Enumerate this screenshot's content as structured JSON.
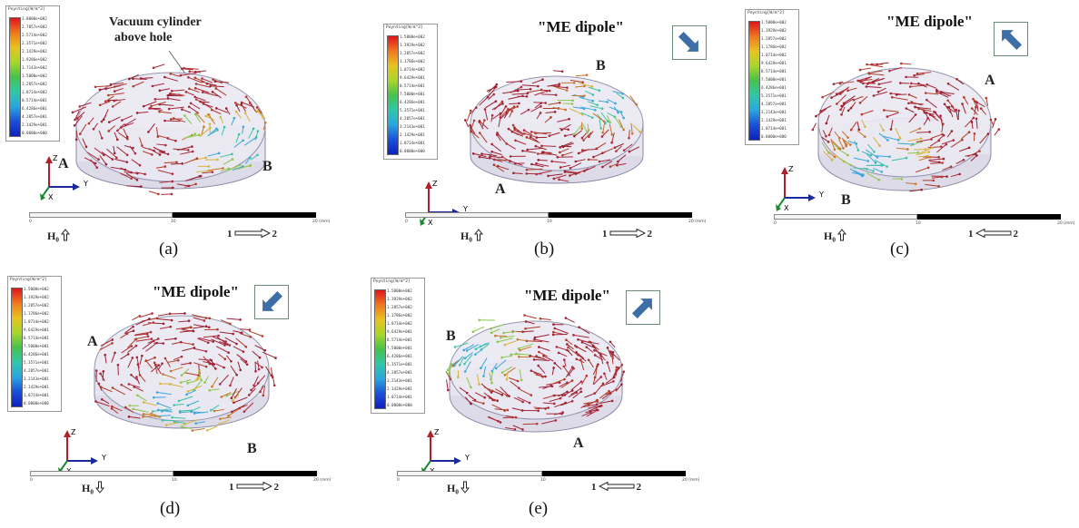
{
  "legend": {
    "title": "Poynting[W/m^2]",
    "values_a": [
      "3.0000e+002",
      "2.7857e+002",
      "2.5714e+002",
      "2.3571e+002",
      "2.1429e+002",
      "1.9286e+002",
      "1.7143e+002",
      "1.5000e+002",
      "1.2857e+002",
      "1.0714e+002",
      "8.5714e+001",
      "6.4286e+001",
      "4.2857e+001",
      "2.1429e+001",
      "0.0000e+000"
    ],
    "values_b": [
      "1.5000e+002",
      "1.3929e+002",
      "1.2857e+002",
      "1.1786e+002",
      "1.0714e+002",
      "9.6429e+001",
      "8.5714e+001",
      "7.5000e+001",
      "6.4286e+001",
      "5.3571e+001",
      "4.2857e+001",
      "3.2143e+001",
      "2.1429e+001",
      "1.0714e+001",
      "0.0000e+000"
    ]
  },
  "axes": {
    "z": "Z",
    "y": "Y",
    "x": "X"
  },
  "ruler": {
    "start": "0",
    "mid": "10",
    "end": "20 (mm)"
  },
  "h0_label": "H₀",
  "callout": [
    "Vacuum cylinder",
    "above hole"
  ],
  "dipole_label": "\"ME dipole\"",
  "ports": {
    "one": "1",
    "two": "2"
  },
  "panels": [
    {
      "caption": "(a)",
      "label_1": "A",
      "label_2": "B",
      "h0_dir": "up",
      "port_dir": "right"
    },
    {
      "caption": "(b)",
      "label_1": "A",
      "label_2": "B",
      "h0_dir": "up",
      "port_dir": "right",
      "dipole_arrow": "down-right"
    },
    {
      "caption": "(c)",
      "label_1": "A",
      "label_2": "B",
      "h0_dir": "up",
      "port_dir": "left",
      "dipole_arrow": "up-left"
    },
    {
      "caption": "(d)",
      "label_1": "A",
      "label_2": "B",
      "h0_dir": "down",
      "port_dir": "right",
      "dipole_arrow": "down-left"
    },
    {
      "caption": "(e)",
      "label_1": "B",
      "label_2": "A",
      "h0_dir": "down",
      "port_dir": "left",
      "dipole_arrow": "up-right"
    }
  ],
  "colors": {
    "arrow_main": "#9c2030",
    "disk_fill": "#e6e4ef",
    "disk_edge": "#8a8aa6",
    "dipole_arrow": "#3d6ea8"
  }
}
